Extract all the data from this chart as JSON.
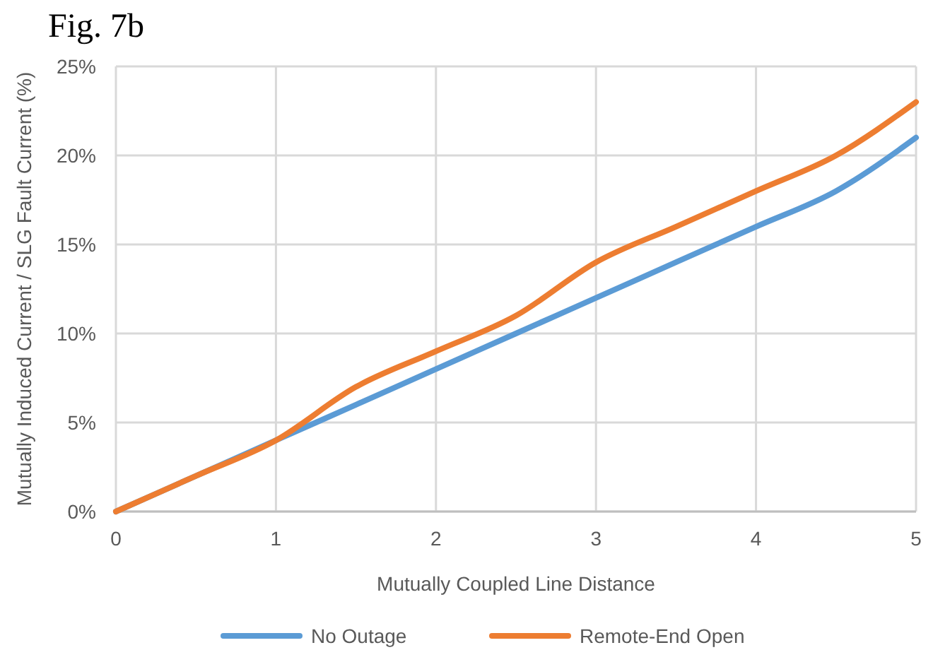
{
  "chart_data": {
    "type": "line",
    "title": "Fig. 7b",
    "xlabel": "Mutually Coupled Line Distance",
    "ylabel": "Mutually Induced Current / SLG Fault Current (%)",
    "x": [
      0,
      0.5,
      1,
      1.5,
      2,
      2.5,
      3,
      3.5,
      4,
      4.5,
      5
    ],
    "series": [
      {
        "name": "No Outage",
        "color": "#5b9bd5",
        "values": [
          0,
          2,
          4,
          6,
          8,
          10,
          12,
          14,
          16,
          18,
          21
        ]
      },
      {
        "name": "Remote-End Open",
        "color": "#ed7d31",
        "values": [
          0,
          2,
          4,
          7,
          9,
          11,
          14,
          16,
          18,
          20,
          23
        ]
      }
    ],
    "xlim": [
      0,
      5
    ],
    "xticks": [
      0,
      1,
      2,
      3,
      4,
      5
    ],
    "ylim": [
      0,
      25
    ],
    "yticks": [
      {
        "value": 0,
        "label": "0%"
      },
      {
        "value": 5,
        "label": "5%"
      },
      {
        "value": 10,
        "label": "10%"
      },
      {
        "value": 15,
        "label": "15%"
      },
      {
        "value": 20,
        "label": "20%"
      },
      {
        "value": 25,
        "label": "25%"
      }
    ],
    "grid": true,
    "legend": "bottom",
    "marker": "none",
    "line_style": "solid"
  }
}
